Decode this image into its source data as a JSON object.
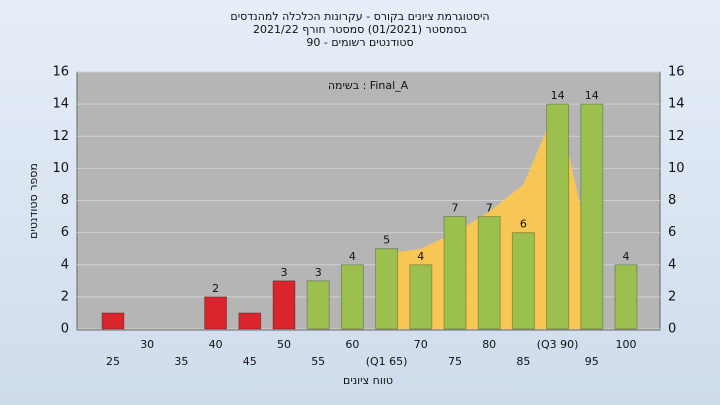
{
  "chart_data": {
    "type": "bar",
    "title": "היסטוגרמת ציונים בקורס - עקרונות הכלכלה למהנדסים",
    "subtitle": "בסמסטר  (01/2021)  סמסטר חורף 2021/22",
    "subtitle2": "סטודנטים רשומים - 90",
    "annotation": "בשימה : Final_A",
    "x_label": "טווח ציונים",
    "y_label": "מספר סטודנטים",
    "categories": [
      "25",
      "30",
      "35",
      "40",
      "45",
      "50",
      "55",
      "60",
      "(Q1 65)",
      "70",
      "75",
      "80",
      "85",
      "(Q3 90)",
      "95",
      "100"
    ],
    "values": [
      1,
      0,
      0,
      2,
      1,
      3,
      3,
      4,
      5,
      4,
      7,
      7,
      6,
      14,
      14,
      4
    ],
    "value_labels": [
      null,
      null,
      null,
      "2",
      null,
      "3",
      "3",
      "4",
      "5",
      "4",
      "7",
      "7",
      "6",
      "14",
      "14",
      "4"
    ],
    "colors": [
      "#d8262c",
      "#d8262c",
      "#d8262c",
      "#d8262c",
      "#d8262c",
      "#d8262c",
      "#9cc04e",
      "#9cc04e",
      "#9cc04e",
      "#9cc04e",
      "#9cc04e",
      "#9cc04e",
      "#9cc04e",
      "#9cc04e",
      "#9cc04e",
      "#9cc04e"
    ],
    "area": {
      "color": "#ffc84a",
      "values": [
        null,
        null,
        null,
        null,
        null,
        null,
        null,
        null,
        4.7,
        5,
        6,
        7.3,
        9,
        14,
        4.5,
        null
      ]
    },
    "ylim": [
      0,
      16
    ],
    "yticks": [
      0,
      2,
      4,
      6,
      8,
      10,
      12,
      14,
      16
    ],
    "grid": true
  }
}
